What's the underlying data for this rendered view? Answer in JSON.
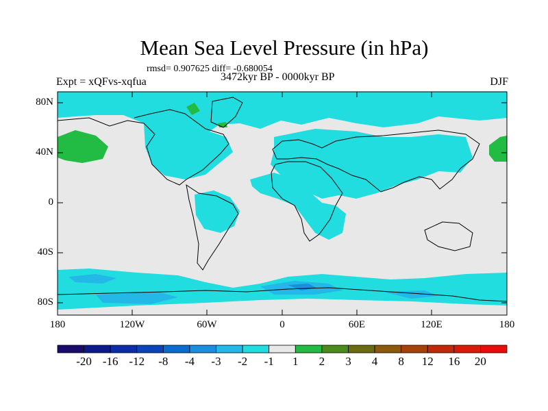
{
  "title": "Mean Sea Level Pressure (in hPa)",
  "stats": "rmsd= 0.907625 diff= -0.680054",
  "experiment": "Expt = xQFvs-xqfua",
  "period": "3472kyr BP - 0000kyr BP",
  "season": "DJF",
  "y_axis_labels": [
    "80N",
    "40N",
    "0",
    "40S",
    "80S"
  ],
  "x_axis_labels": [
    "180",
    "120W",
    "60W",
    "0",
    "60E",
    "120E",
    "180"
  ],
  "colorbar": {
    "labels": [
      "-20",
      "-16",
      "-12",
      "-8",
      "-4",
      "-3",
      "-2",
      "-1",
      "1",
      "2",
      "3",
      "4",
      "8",
      "12",
      "16",
      "20"
    ],
    "colors": [
      "#1a0c6b",
      "#0d1a8c",
      "#0b2ea8",
      "#0a44b8",
      "#0a6bd0",
      "#1a8fe0",
      "#23b8e8",
      "#22dde0",
      "#e8e8e8",
      "#22bb44",
      "#4a8c1a",
      "#6b6b10",
      "#8c5a0a",
      "#a8400a",
      "#c02a08",
      "#d81a08",
      "#e80c0c"
    ]
  },
  "colors": {
    "background_field": "#e8e8e8",
    "light_negative": "#22dde0",
    "mid_negative": "#23b8e8",
    "strong_negative": "#1a8fe0",
    "positive": "#22bb44",
    "coastline": "#000000"
  }
}
